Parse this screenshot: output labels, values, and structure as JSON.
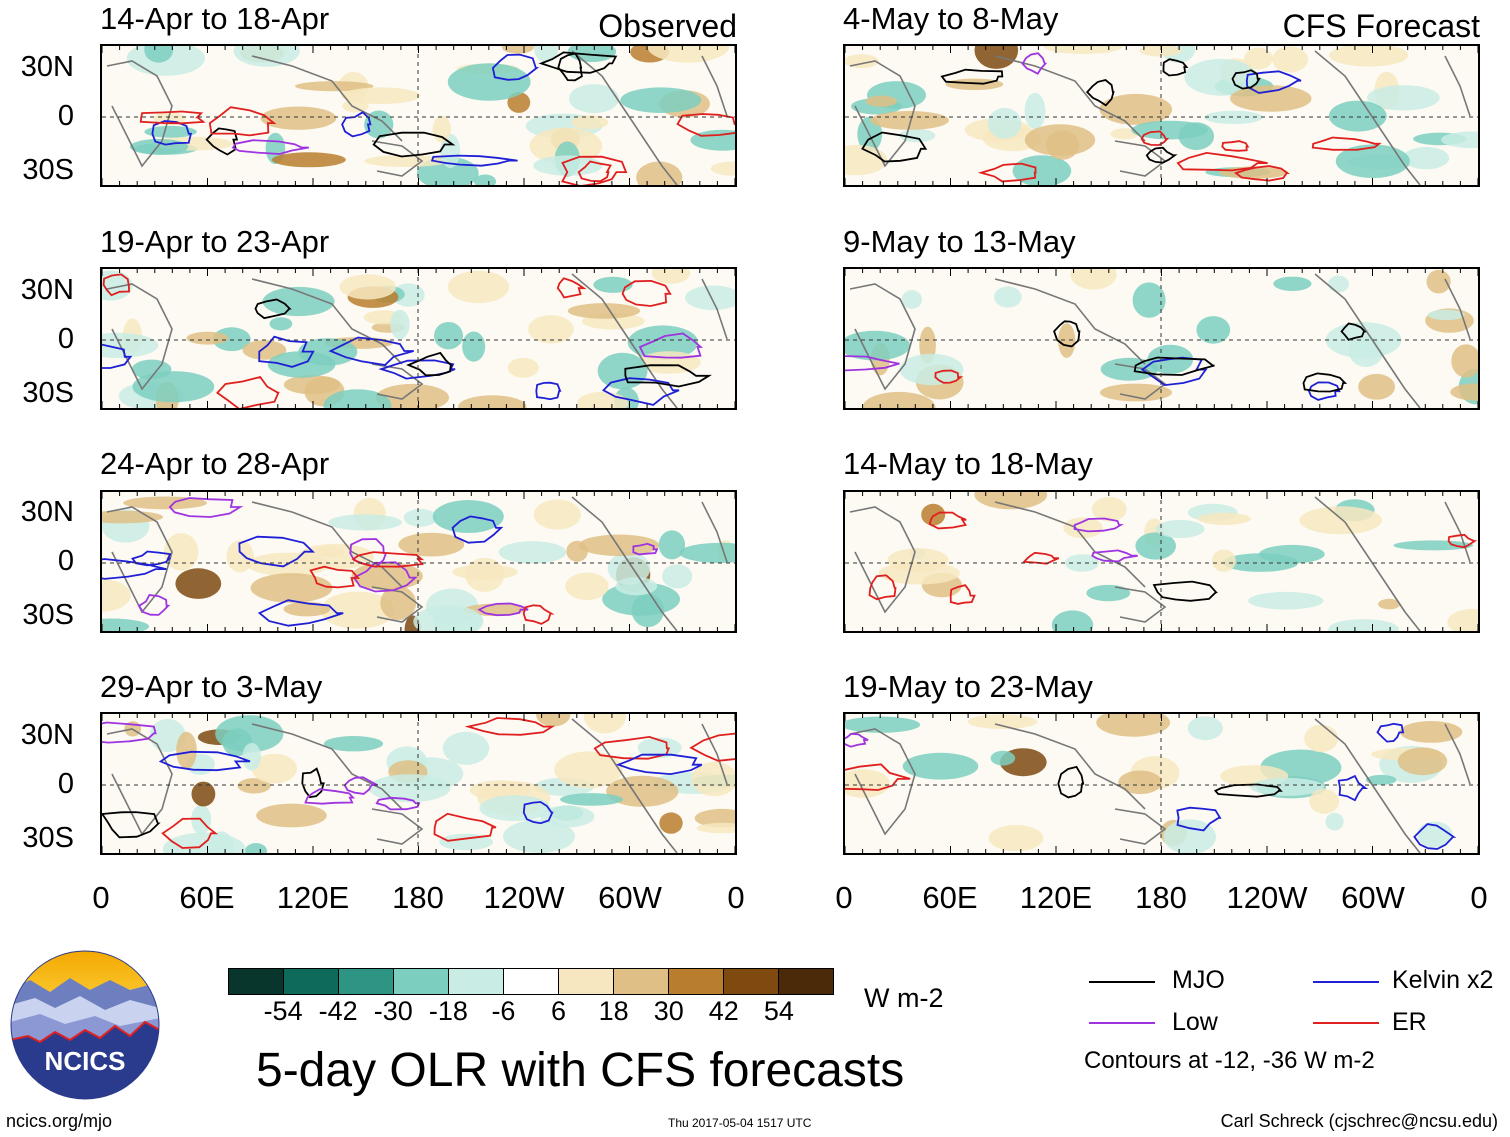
{
  "left_column": {
    "header": "Observed",
    "panels": [
      "14-Apr to 18-Apr",
      "19-Apr to 23-Apr",
      "24-Apr to 28-Apr",
      "29-Apr to 3-May"
    ]
  },
  "right_column": {
    "header": "CFS Forecast",
    "panels": [
      "4-May to 8-May",
      "9-May to 13-May",
      "14-May to 18-May",
      "19-May to 23-May"
    ]
  },
  "lat_ticks": [
    "30N",
    "0",
    "30S"
  ],
  "lon_ticks": [
    "0",
    "60E",
    "120E",
    "180",
    "120W",
    "60W",
    "0"
  ],
  "colorbar": {
    "labels": [
      "-54",
      "-42",
      "-30",
      "-18",
      "-6",
      "6",
      "18",
      "30",
      "42",
      "54"
    ],
    "colors": [
      "#08352c",
      "#0e6a5b",
      "#2e9483",
      "#7ccfbf",
      "#c9ece4",
      "#ffffff",
      "#f7e7c0",
      "#dfbf85",
      "#b87e2e",
      "#7e4a10",
      "#4a2a08"
    ],
    "units": "W m-2"
  },
  "title": "5-day OLR with CFS forecasts",
  "legend": {
    "items": [
      {
        "label": "MJO",
        "color": "#000000"
      },
      {
        "label": "Kelvin x2",
        "color": "#1f1fd6"
      },
      {
        "label": "Low",
        "color": "#a033e0"
      },
      {
        "label": "ER",
        "color": "#e01f1f"
      }
    ],
    "note": "Contours at -12, -36 W m-2"
  },
  "logo_text": "NCICS",
  "footer": {
    "url": "ncics.org/mjo",
    "timestamp": "Thu 2017-05-04 1517 UTC",
    "credit": "Carl Schreck (cjschrec@ncsu.edu)"
  }
}
